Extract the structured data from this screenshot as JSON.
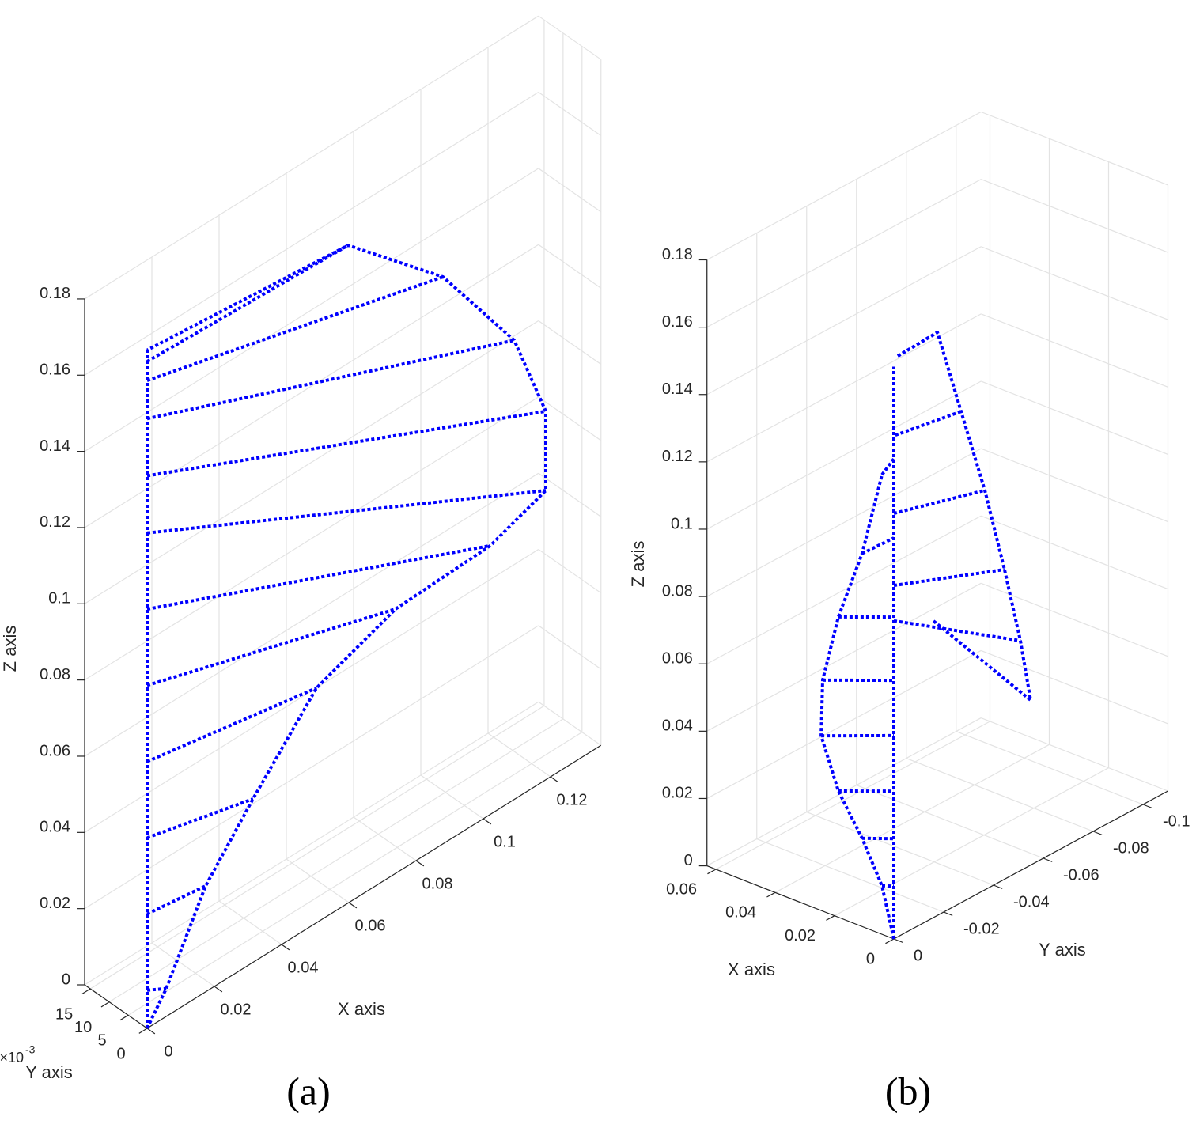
{
  "chart_data": [
    {
      "type": "mesh3d",
      "label": "(a)",
      "xlabel": "X axis",
      "ylabel": "Y axis",
      "zlabel": "Z axis",
      "yticks_multiplier": "×10",
      "yticks_multiplier_power": "-3",
      "xlim": [
        0,
        0.135
      ],
      "ylim": [
        0,
        0.0165
      ],
      "zlim": [
        0,
        0.18
      ],
      "xticks": [
        0,
        0.02,
        0.04,
        0.06,
        0.08,
        0.1,
        0.12
      ],
      "yticks": [
        0,
        {
          "value": 0.005,
          "label": "5"
        },
        {
          "value": 0.01,
          "label": "10"
        },
        {
          "value": 0.015,
          "label": "15"
        }
      ],
      "zticks": [
        0,
        0.02,
        0.04,
        0.06,
        0.08,
        0.1,
        0.12,
        0.14,
        0.16,
        0.18
      ],
      "grid": true,
      "color": "#0000ff",
      "curves": [
        {
          "x": [
            0,
            0
          ],
          "y": [
            0,
            0
          ],
          "z": [
            0,
            0.178
          ]
        },
        {
          "x": [
            0,
            0.0057,
            0.0174,
            0.0315,
            0.0504,
            0.0739,
            0.1021,
            0.1186,
            0.1186,
            0.1092,
            0.088,
            0.0598,
            0
          ],
          "y": [
            0,
            0,
            0,
            0,
            0,
            0,
            0,
            0,
            0,
            0,
            0,
            0,
            0
          ],
          "z": [
            0,
            0.0073,
            0.0278,
            0.0429,
            0.0616,
            0.0694,
            0.0705,
            0.0759,
            0.0967,
            0.1205,
            0.1488,
            0.1726,
            0.178
          ]
        },
        {
          "x": [
            0,
            0.0057
          ],
          "y": [
            0,
            0
          ],
          "z": [
            0.01,
            0.0073
          ]
        },
        {
          "x": [
            0,
            0.0174
          ],
          "y": [
            0,
            0
          ],
          "z": [
            0.03,
            0.0278
          ]
        },
        {
          "x": [
            0,
            0.0315
          ],
          "y": [
            0,
            0
          ],
          "z": [
            0.05,
            0.0429
          ]
        },
        {
          "x": [
            0,
            0.0504
          ],
          "y": [
            0,
            0
          ],
          "z": [
            0.07,
            0.0616
          ]
        },
        {
          "x": [
            0,
            0.0739
          ],
          "y": [
            0,
            0
          ],
          "z": [
            0.09,
            0.0694
          ]
        },
        {
          "x": [
            0,
            0.1021
          ],
          "y": [
            0,
            0
          ],
          "z": [
            0.11,
            0.0705
          ]
        },
        {
          "x": [
            0,
            0.1186
          ],
          "y": [
            0,
            0
          ],
          "z": [
            0.13,
            0.0759
          ]
        },
        {
          "x": [
            0,
            0.1186
          ],
          "y": [
            0,
            0
          ],
          "z": [
            0.145,
            0.0967
          ]
        },
        {
          "x": [
            0,
            0.1092
          ],
          "y": [
            0,
            0
          ],
          "z": [
            0.16,
            0.1205
          ]
        },
        {
          "x": [
            0,
            0.088
          ],
          "y": [
            0,
            0
          ],
          "z": [
            0.17,
            0.1488
          ]
        },
        {
          "x": [
            0,
            0.0598
          ],
          "y": [
            0,
            0
          ],
          "z": [
            0.175,
            0.1726
          ]
        }
      ]
    },
    {
      "type": "mesh3d",
      "label": "(b)",
      "xlabel": "X axis",
      "ylabel": "Y axis",
      "zlabel": "Z axis",
      "xlim": [
        0,
        0.063
      ],
      "ylim": [
        -0.11,
        0
      ],
      "zlim": [
        0,
        0.18
      ],
      "xticks": [
        0,
        0.02,
        0.04,
        0.06
      ],
      "yticks": [
        -0.1,
        -0.08,
        -0.06,
        -0.04,
        -0.02,
        0
      ],
      "zticks": [
        0,
        0.02,
        0.04,
        0.06,
        0.08,
        0.1,
        0.12,
        0.14,
        0.16,
        0.18
      ],
      "grid": true,
      "color": "#0000ff",
      "curves": [
        {
          "x": [
            0,
            0
          ],
          "y": [
            0,
            0
          ],
          "z": [
            0,
            0.17
          ]
        },
        {
          "x": [
            0,
            0.004,
            0.0107,
            0.0187,
            0.0245,
            0.024,
            0.0187,
            0.0107,
            0.004
          ],
          "y": [
            0,
            0,
            0,
            0,
            0,
            0,
            0,
            0,
            0
          ],
          "z": [
            0,
            0.0144,
            0.0262,
            0.0375,
            0.0519,
            0.0686,
            0.0892,
            0.1108,
            0.1365
          ]
        },
        {
          "x": [
            0,
            0,
            0,
            0,
            0,
            0,
            0
          ],
          "y": [
            -0.0016,
            -0.0175,
            -0.027,
            -0.0365,
            -0.0444,
            -0.0508,
            -0.0549
          ],
          "z": [
            0.1725,
            0.1732,
            0.1459,
            0.1187,
            0.092,
            0.0683,
            0.049
          ]
        },
        {
          "x": [
            0.004,
            0
          ],
          "y": [
            0,
            0
          ],
          "z": [
            0.0144,
            0.0157
          ]
        },
        {
          "x": [
            0.0107,
            0
          ],
          "y": [
            0,
            0
          ],
          "z": [
            0.0262,
            0.0298
          ]
        },
        {
          "x": [
            0.0187,
            0
          ],
          "y": [
            0,
            0
          ],
          "z": [
            0.0375,
            0.0439
          ]
        },
        {
          "x": [
            0.0245,
            0
          ],
          "y": [
            0,
            0
          ],
          "z": [
            0.0519,
            0.0604
          ]
        },
        {
          "x": [
            0.024,
            0
          ],
          "y": [
            0,
            0
          ],
          "z": [
            0.0686,
            0.0768
          ]
        },
        {
          "x": [
            0.0187,
            0
          ],
          "y": [
            0,
            0
          ],
          "z": [
            0.0892,
            0.0956
          ]
        },
        {
          "x": [
            0.0107,
            0
          ],
          "y": [
            0,
            0
          ],
          "z": [
            0.1108,
            0.1191
          ]
        },
        {
          "x": [
            0.004,
            0
          ],
          "y": [
            0,
            0
          ],
          "z": [
            0.1365,
            0.1426
          ]
        },
        {
          "x": [
            0,
            0
          ],
          "y": [
            -0.0016,
            -0.0175
          ],
          "z": [
            0.1725,
            0.1732
          ]
        },
        {
          "x": [
            0,
            0
          ],
          "y": [
            -0.0006,
            -0.027
          ],
          "z": [
            0.1494,
            0.1459
          ]
        },
        {
          "x": [
            0,
            0
          ],
          "y": [
            0,
            -0.0365
          ],
          "z": [
            0.1264,
            0.1187
          ]
        },
        {
          "x": [
            0,
            0
          ],
          "y": [
            0,
            -0.0444
          ],
          "z": [
            0.105,
            0.092
          ]
        },
        {
          "x": [
            0,
            0
          ],
          "y": [
            0,
            -0.0508
          ],
          "z": [
            0.0945,
            0.0683
          ]
        },
        {
          "x": [
            0,
            0
          ],
          "y": [
            -0.0159,
            -0.0549
          ],
          "z": [
            0.0881,
            0.049
          ]
        }
      ]
    }
  ]
}
